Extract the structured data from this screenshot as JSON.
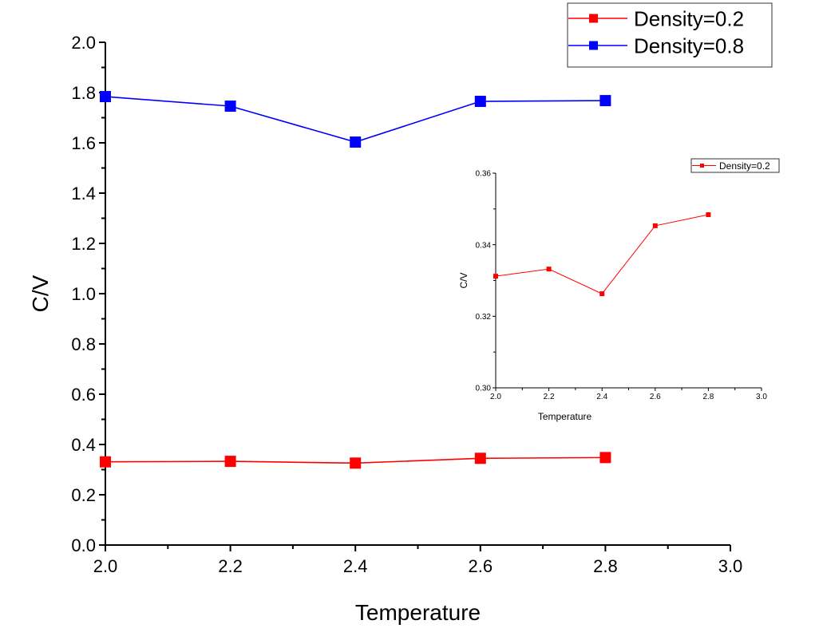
{
  "chart_data": [
    {
      "id": "main",
      "type": "line",
      "title": "",
      "xlabel": "Temperature",
      "ylabel": "C/V",
      "xlim": [
        2.0,
        3.0
      ],
      "ylim": [
        0.0,
        2.0
      ],
      "xticks": [
        "2.0",
        "2.2",
        "2.4",
        "2.6",
        "2.8",
        "3.0"
      ],
      "yticks": [
        "0.0",
        "0.2",
        "0.4",
        "0.6",
        "0.8",
        "1.0",
        "1.2",
        "1.4",
        "1.6",
        "1.8",
        "2.0"
      ],
      "grid": false,
      "legend_position": "top-right",
      "x": [
        2.0,
        2.2,
        2.4,
        2.6,
        2.8
      ],
      "series": [
        {
          "name": "Density=0.2",
          "color": "#ff0000",
          "marker": "square",
          "values": [
            0.331,
            0.333,
            0.326,
            0.345,
            0.348
          ]
        },
        {
          "name": "Density=0.8",
          "color": "#0000ff",
          "marker": "square",
          "values": [
            1.784,
            1.746,
            1.603,
            1.765,
            1.768
          ]
        }
      ]
    },
    {
      "id": "inset",
      "type": "line",
      "title": "",
      "xlabel": "Temperature",
      "ylabel": "C/V",
      "xlim": [
        2.0,
        3.0
      ],
      "ylim": [
        0.3,
        0.36
      ],
      "xticks": [
        "2.0",
        "2.2",
        "2.4",
        "2.6",
        "2.8",
        "3.0"
      ],
      "yticks": [
        "0.30",
        "0.32",
        "0.34",
        "0.36"
      ],
      "grid": false,
      "legend_position": "top-right",
      "x": [
        2.0,
        2.2,
        2.4,
        2.6,
        2.8
      ],
      "series": [
        {
          "name": "Density=0.2",
          "color": "#ff0000",
          "marker": "square",
          "values": [
            0.3312,
            0.3332,
            0.3263,
            0.3453,
            0.3484
          ]
        }
      ]
    }
  ]
}
